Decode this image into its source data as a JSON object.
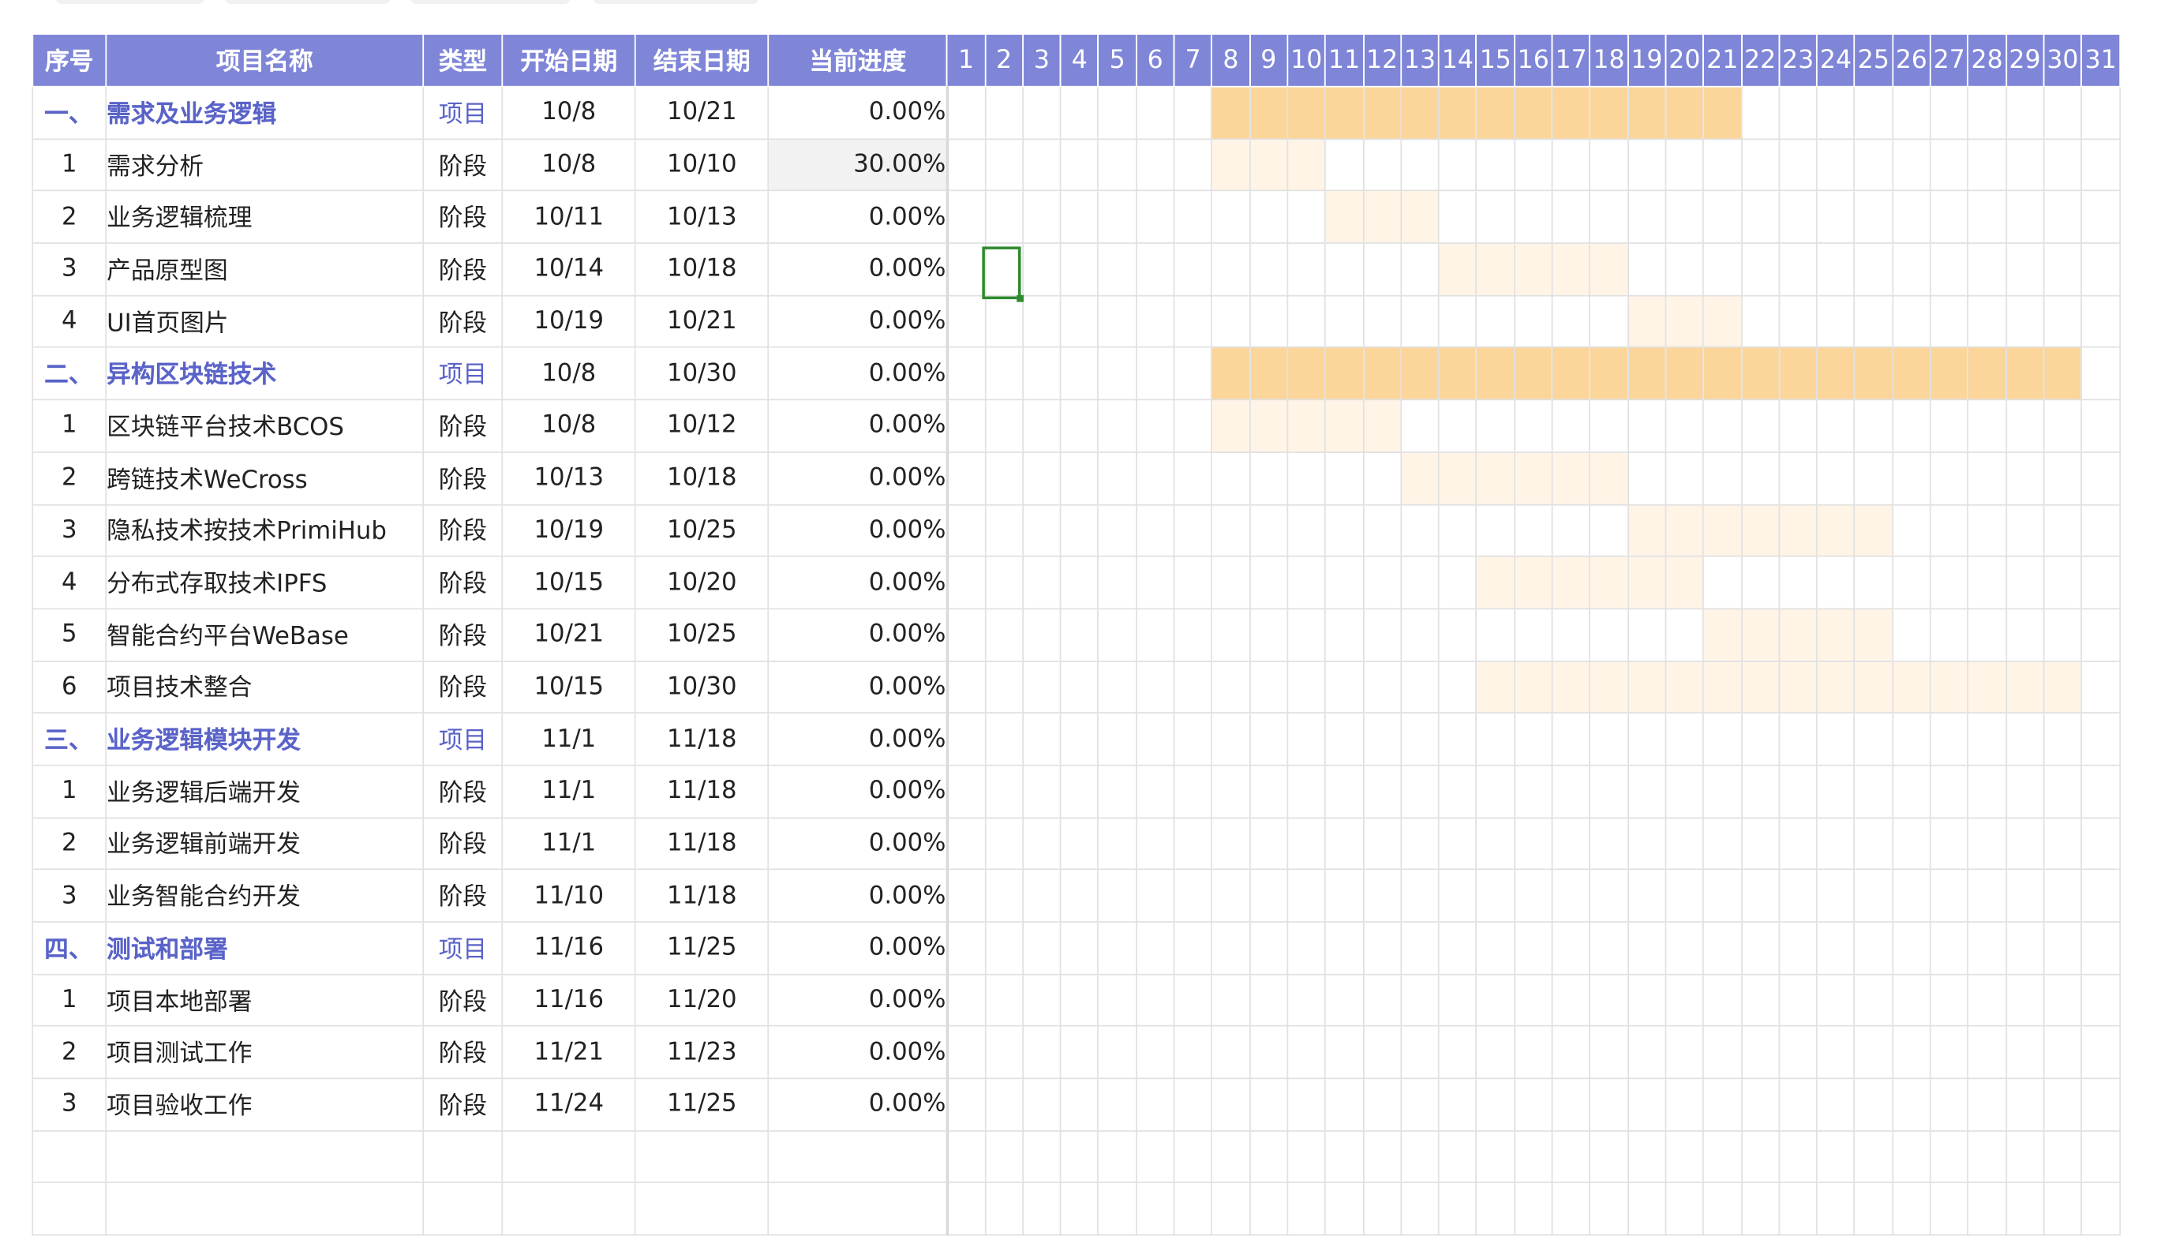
{
  "headers": {
    "idx": "序号",
    "name": "项目名称",
    "type": "类型",
    "start": "开始日期",
    "end": "结束日期",
    "progress": "当前进度"
  },
  "days": [
    "1",
    "2",
    "3",
    "4",
    "5",
    "6",
    "7",
    "8",
    "9",
    "10",
    "11",
    "12",
    "13",
    "14",
    "15",
    "16",
    "17",
    "18",
    "19",
    "20",
    "21",
    "22",
    "23",
    "24",
    "25",
    "26",
    "27",
    "28",
    "29",
    "30",
    "31"
  ],
  "rows": [
    {
      "idx": "一、",
      "name": "需求及业务逻辑",
      "type": "项目",
      "start": "10/8",
      "end": "10/21",
      "progress": "0.00%",
      "level": "project",
      "bar": [
        8,
        21
      ]
    },
    {
      "idx": "1",
      "name": "需求分析",
      "type": "阶段",
      "start": "10/8",
      "end": "10/10",
      "progress": "30.00%",
      "level": "phase",
      "bar": [
        8,
        10
      ]
    },
    {
      "idx": "2",
      "name": "业务逻辑梳理",
      "type": "阶段",
      "start": "10/11",
      "end": "10/13",
      "progress": "0.00%",
      "level": "phase",
      "bar": [
        11,
        13
      ]
    },
    {
      "idx": "3",
      "name": "产品原型图",
      "type": "阶段",
      "start": "10/14",
      "end": "10/18",
      "progress": "0.00%",
      "level": "phase",
      "bar": [
        14,
        18
      ]
    },
    {
      "idx": "4",
      "name": "UI首页图片",
      "type": "阶段",
      "start": "10/19",
      "end": "10/21",
      "progress": "0.00%",
      "level": "phase",
      "bar": [
        19,
        21
      ]
    },
    {
      "idx": "二、",
      "name": "异构区块链技术",
      "type": "项目",
      "start": "10/8",
      "end": "10/30",
      "progress": "0.00%",
      "level": "project",
      "bar": [
        8,
        30
      ]
    },
    {
      "idx": "1",
      "name": "区块链平台技术BCOS",
      "type": "阶段",
      "start": "10/8",
      "end": "10/12",
      "progress": "0.00%",
      "level": "phase",
      "bar": [
        8,
        12
      ]
    },
    {
      "idx": "2",
      "name": "跨链技术WeCross",
      "type": "阶段",
      "start": "10/13",
      "end": "10/18",
      "progress": "0.00%",
      "level": "phase",
      "bar": [
        13,
        18
      ]
    },
    {
      "idx": "3",
      "name": "隐私技术按技术PrimiHub",
      "type": "阶段",
      "start": "10/19",
      "end": "10/25",
      "progress": "0.00%",
      "level": "phase",
      "bar": [
        19,
        25
      ]
    },
    {
      "idx": "4",
      "name": "分布式存取技术IPFS",
      "type": "阶段",
      "start": "10/15",
      "end": "10/20",
      "progress": "0.00%",
      "level": "phase",
      "bar": [
        15,
        20
      ]
    },
    {
      "idx": "5",
      "name": "智能合约平台WeBase",
      "type": "阶段",
      "start": "10/21",
      "end": "10/25",
      "progress": "0.00%",
      "level": "phase",
      "bar": [
        21,
        25
      ]
    },
    {
      "idx": "6",
      "name": "项目技术整合",
      "type": "阶段",
      "start": "10/15",
      "end": "10/30",
      "progress": "0.00%",
      "level": "phase",
      "bar": [
        15,
        30
      ]
    },
    {
      "idx": "三、",
      "name": "业务逻辑模块开发",
      "type": "项目",
      "start": "11/1",
      "end": "11/18",
      "progress": "0.00%",
      "level": "project",
      "bar": null
    },
    {
      "idx": "1",
      "name": "业务逻辑后端开发",
      "type": "阶段",
      "start": "11/1",
      "end": "11/18",
      "progress": "0.00%",
      "level": "phase",
      "bar": null
    },
    {
      "idx": "2",
      "name": "业务逻辑前端开发",
      "type": "阶段",
      "start": "11/1",
      "end": "11/18",
      "progress": "0.00%",
      "level": "phase",
      "bar": null
    },
    {
      "idx": "3",
      "name": "业务智能合约开发",
      "type": "阶段",
      "start": "11/10",
      "end": "11/18",
      "progress": "0.00%",
      "level": "phase",
      "bar": null
    },
    {
      "idx": "四、",
      "name": "测试和部署",
      "type": "项目",
      "start": "11/16",
      "end": "11/25",
      "progress": "0.00%",
      "level": "project",
      "bar": null
    },
    {
      "idx": "1",
      "name": "项目本地部署",
      "type": "阶段",
      "start": "11/16",
      "end": "11/20",
      "progress": "0.00%",
      "level": "phase",
      "bar": null
    },
    {
      "idx": "2",
      "name": "项目测试工作",
      "type": "阶段",
      "start": "11/21",
      "end": "11/23",
      "progress": "0.00%",
      "level": "phase",
      "bar": null
    },
    {
      "idx": "3",
      "name": "项目验收工作",
      "type": "阶段",
      "start": "11/24",
      "end": "11/25",
      "progress": "0.00%",
      "level": "phase",
      "bar": null
    }
  ],
  "highlight_progress_row": 1,
  "blank_rows": 2,
  "colors": {
    "header_bg": "#7f86d8",
    "project_text": "#5a63c8",
    "bar_project": "#fbd59a",
    "bar_phase": "#fff4e6",
    "cursor": "#2f8a2f"
  }
}
